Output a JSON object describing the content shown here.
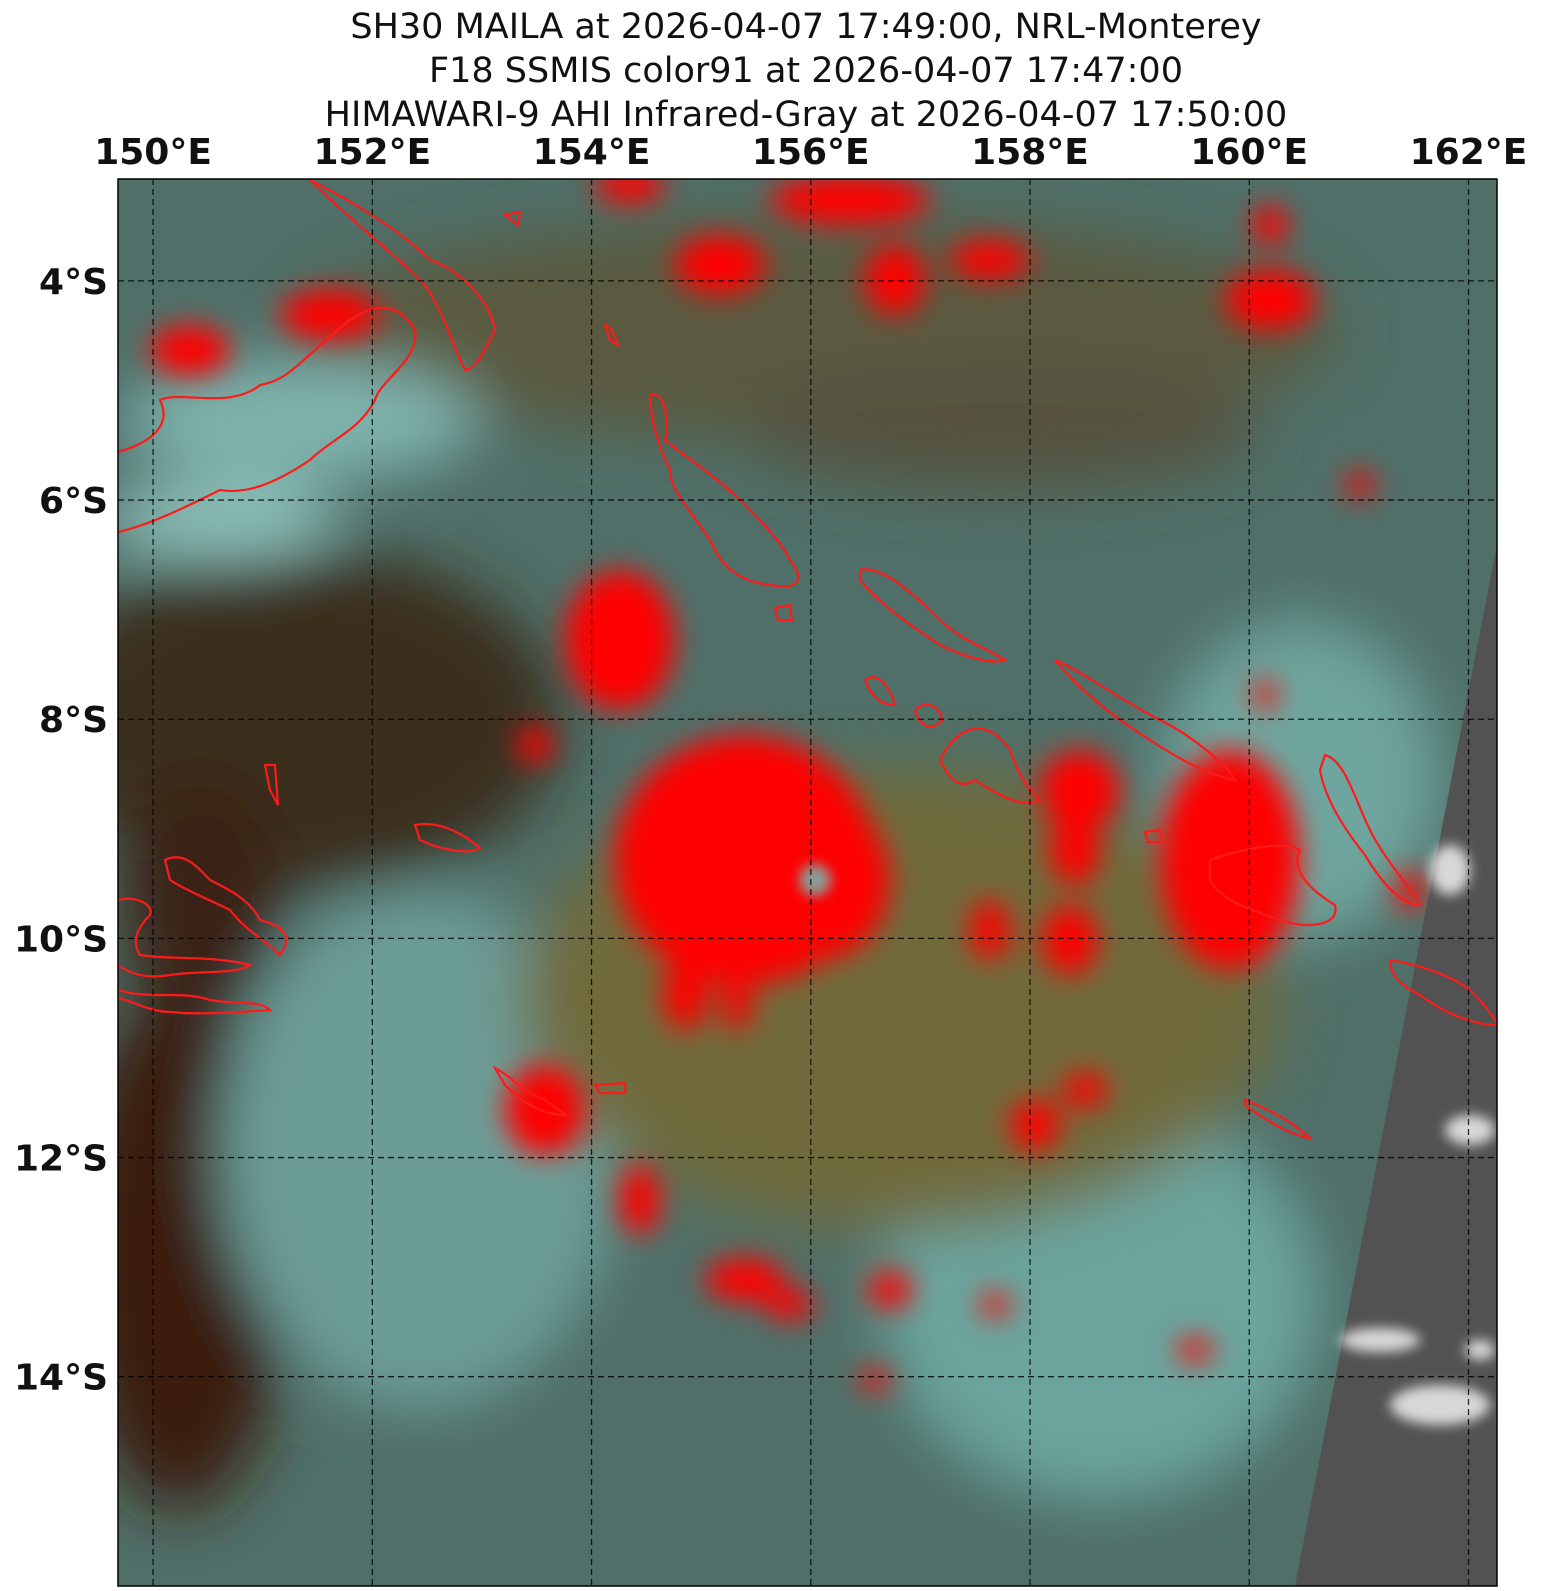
{
  "chart_data": {
    "type": "map",
    "title": [
      "SH30 MAILA at 2026-04-07 17:49:00, NRL-Monterey",
      "F18 SSMIS color91 at 2026-04-07 17:47:00",
      "HIMAWARI-9 AHI Infrared-Gray at 2026-04-07 17:50:00"
    ],
    "xlim": [
      149.68,
      162.26
    ],
    "ylim": [
      -15.91,
      -3.07
    ],
    "xticks": [
      {
        "value": 150,
        "label": "150°E"
      },
      {
        "value": 152,
        "label": "152°E"
      },
      {
        "value": 154,
        "label": "154°E"
      },
      {
        "value": 156,
        "label": "156°E"
      },
      {
        "value": 158,
        "label": "158°E"
      },
      {
        "value": 160,
        "label": "160°E"
      },
      {
        "value": 162,
        "label": "162°E"
      }
    ],
    "yticks": [
      {
        "value": -4,
        "label": "4°S"
      },
      {
        "value": -6,
        "label": "6°S"
      },
      {
        "value": -8,
        "label": "8°S"
      },
      {
        "value": -10,
        "label": "10°S"
      },
      {
        "value": -12,
        "label": "12°S"
      },
      {
        "value": -14,
        "label": "14°S"
      }
    ],
    "grid": true
  }
}
